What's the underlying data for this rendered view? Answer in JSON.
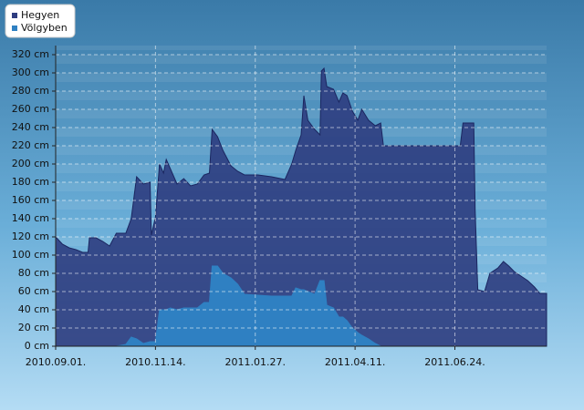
{
  "chart_data": {
    "type": "area",
    "x": [
      "2010.09.01.",
      "2010.09.06.",
      "2010.09.11.",
      "2010.09.16.",
      "2010.09.21.",
      "2010.09.25.",
      "2010.09.26.",
      "2010.10.01.",
      "2010.10.06.",
      "2010.10.11.",
      "2010.10.16.",
      "2010.10.23.",
      "2010.10.27.",
      "2010.10.31.",
      "2010.11.05.",
      "2010.11.10.",
      "2010.11.11.",
      "2010.11.14.",
      "2010.11.17.",
      "2010.11.20.",
      "2010.11.22.",
      "2010.11.25.",
      "2010.11.30.",
      "2010.12.05.",
      "2010.12.10.",
      "2010.12.15.",
      "2010.12.20.",
      "2010.12.24.",
      "2010.12.26.",
      "2010.12.30.",
      "2011.01.03.",
      "2011.01.09.",
      "2011.01.14.",
      "2011.01.19.",
      "2011.01.29.",
      "2011.02.08.",
      "2011.02.18.",
      "2011.02.23.",
      "2011.02.26.",
      "2011.03.02.",
      "2011.03.04.",
      "2011.03.07.",
      "2011.03.12.",
      "2011.03.16.",
      "2011.03.17.",
      "2011.03.19.",
      "2011.03.21.",
      "2011.03.26.",
      "2011.03.30.",
      "2011.04.02.",
      "2011.04.05.",
      "2011.04.09.",
      "2011.04.13.",
      "2011.04.16.",
      "2011.04.21.",
      "2011.04.26.",
      "2011.04.30.",
      "2011.05.02.",
      "2011.05.19.",
      "2011.06.08.",
      "2011.06.28.",
      "2011.06.30.",
      "2011.07.08.",
      "2011.07.09.",
      "2011.07.11.",
      "2011.07.16.",
      "2011.07.20.",
      "2011.07.26.",
      "2011.07.30.",
      "2011.08.03.",
      "2011.08.07.",
      "2011.08.12.",
      "2011.08.17.",
      "2011.08.22.",
      "2011.08.26.",
      "2011.08.31."
    ],
    "series": [
      {
        "name": "Hegyen",
        "color": "#2e3d80",
        "values": [
          120,
          112,
          108,
          106,
          103,
          103,
          119,
          119,
          115,
          110,
          124,
          124,
          140,
          186,
          178,
          180,
          122,
          142,
          200,
          190,
          205,
          195,
          178,
          184,
          176,
          178,
          188,
          190,
          238,
          230,
          215,
          198,
          192,
          188,
          188,
          186,
          183,
          200,
          215,
          232,
          275,
          248,
          238,
          232,
          302,
          305,
          285,
          282,
          268,
          278,
          275,
          258,
          248,
          260,
          248,
          242,
          245,
          220,
          220,
          220,
          220,
          245,
          245,
          150,
          62,
          60,
          80,
          86,
          93,
          88,
          82,
          77,
          72,
          65,
          58,
          58
        ]
      },
      {
        "name": "Völgyben",
        "color": "#2f80c2",
        "values": [
          0,
          0,
          0,
          0,
          0,
          0,
          0,
          0,
          0,
          0,
          0,
          2,
          10,
          8,
          3,
          5,
          5,
          5,
          40,
          40,
          40,
          42,
          40,
          42,
          42,
          42,
          48,
          48,
          88,
          88,
          80,
          75,
          68,
          57,
          56,
          55,
          55,
          55,
          64,
          62,
          62,
          60,
          57,
          72,
          72,
          72,
          45,
          42,
          32,
          32,
          28,
          20,
          15,
          12,
          8,
          3,
          0,
          0,
          0,
          0,
          0,
          0,
          0,
          0,
          0,
          0,
          0,
          0,
          0,
          0,
          0,
          0,
          0,
          0,
          0,
          0
        ]
      }
    ],
    "xlim": [
      "2010.09.01.",
      "2011.08.31."
    ],
    "xticks": [
      "2010.09.01.",
      "2010.11.14.",
      "2011.01.27.",
      "2011.04.11.",
      "2011.06.24."
    ],
    "ylim": [
      0,
      330
    ],
    "yticks": [
      {
        "value": 0,
        "label": "0 cm"
      },
      {
        "value": 20,
        "label": "20 cm"
      },
      {
        "value": 40,
        "label": "40 cm"
      },
      {
        "value": 60,
        "label": "60 cm"
      },
      {
        "value": 80,
        "label": "80 cm"
      },
      {
        "value": 100,
        "label": "100 cm"
      },
      {
        "value": 120,
        "label": "120 cm"
      },
      {
        "value": 140,
        "label": "140 cm"
      },
      {
        "value": 160,
        "label": "160 cm"
      },
      {
        "value": 180,
        "label": "180 cm"
      },
      {
        "value": 200,
        "label": "200 cm"
      },
      {
        "value": 220,
        "label": "220 cm"
      },
      {
        "value": 240,
        "label": "240 cm"
      },
      {
        "value": 260,
        "label": "260 cm"
      },
      {
        "value": 280,
        "label": "280 cm"
      },
      {
        "value": 300,
        "label": "300 cm"
      },
      {
        "value": 320,
        "label": "320 cm"
      }
    ],
    "grid": true,
    "legend": "upper left"
  }
}
